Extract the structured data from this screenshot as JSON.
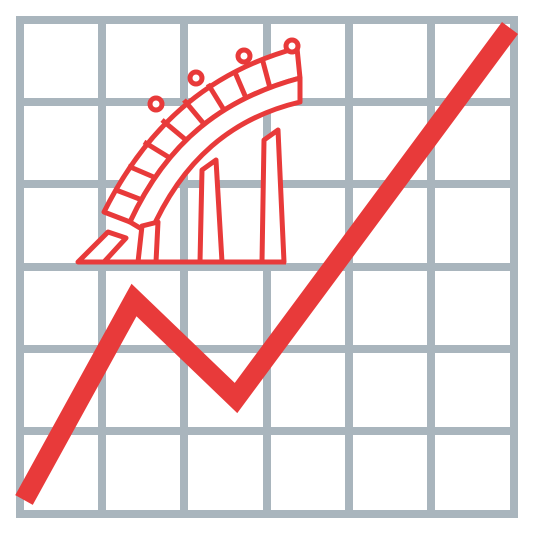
{
  "colors": {
    "grid": "#a9b5bd",
    "accent": "#e83a3a",
    "background": "#ffffff"
  },
  "icons": {
    "grid": "grid-icon",
    "trend_line": "trend-line-icon",
    "bridge": "bridge-arch-icon"
  }
}
